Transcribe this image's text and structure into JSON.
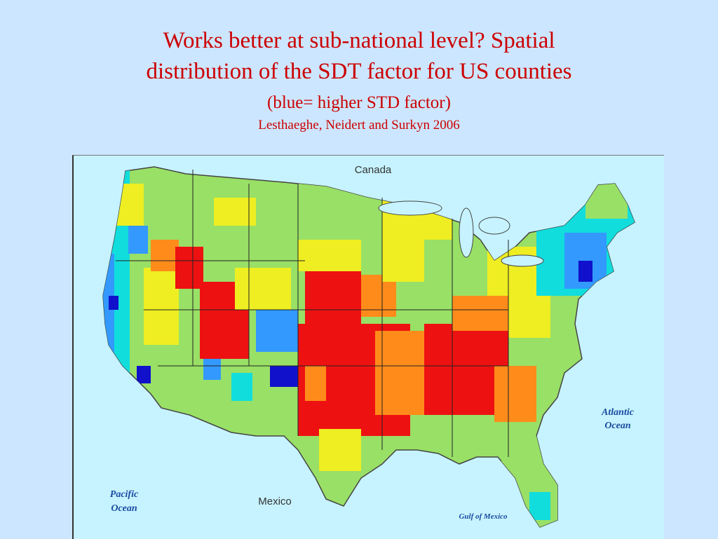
{
  "title": {
    "line1": "Works better at sub-national level? Spatial",
    "line2": "distribution of the SDT factor for US counties",
    "subtitle": "(blue= higher STD factor)",
    "citation": "Lesthaeghe, Neidert and Surkyn 2006"
  },
  "map": {
    "labels": {
      "canada": "Canada",
      "mexico": "Mexico",
      "atlantic_1": "Atlantic",
      "atlantic_2": "Ocean",
      "pacific_1": "Pacific",
      "pacific_2": "Ocean",
      "gulf": "Gulf of Mexico"
    },
    "colors": {
      "water": "#c6f3ff",
      "highest": "#1111cc",
      "high": "#3399ff",
      "mid_high": "#11dddd",
      "mid": "#99e066",
      "mid_low": "#eeee22",
      "low": "#ff8c1a",
      "lowest": "#ee1111",
      "label_blue": "#1a4aa0"
    }
  }
}
